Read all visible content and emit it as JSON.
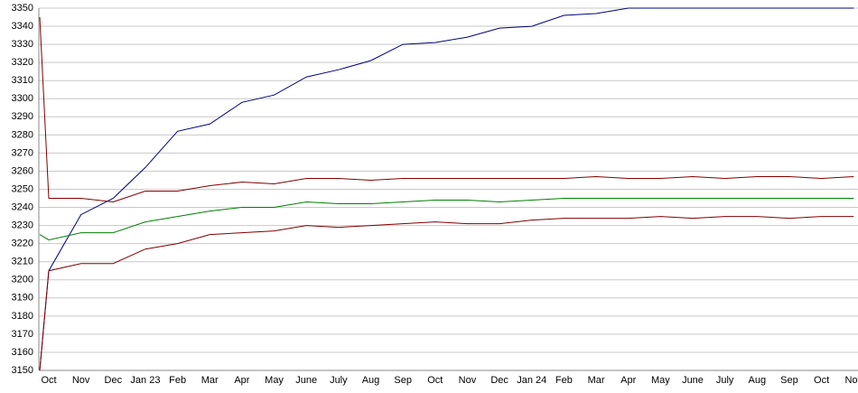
{
  "chart_data": {
    "type": "line",
    "categories": [
      null,
      "Oct",
      "Nov",
      "Dec",
      "Jan 23",
      "Feb",
      "Mar",
      "Apr",
      "May",
      "June",
      "July",
      "Aug",
      "Sep",
      "Oct",
      "Nov",
      "Dec",
      "Jan 24",
      "Feb",
      "Mar",
      "Apr",
      "May",
      "June",
      "July",
      "Aug",
      "Sep",
      "Oct",
      "Nov"
    ],
    "series": [
      {
        "color": "#000080",
        "values": [
          3150,
          3205,
          3236,
          3245,
          3262,
          3282,
          3286,
          3298,
          3302,
          3312,
          3316,
          3321,
          3330,
          3331,
          3334,
          3339,
          3340,
          3346,
          3347,
          3350,
          3350,
          3350,
          3350,
          3350,
          3350,
          3350,
          3350
        ]
      },
      {
        "color": "#800000",
        "values": [
          3345,
          3245,
          3245,
          3243,
          3249,
          3249,
          3252,
          3254,
          3253,
          3256,
          3256,
          3255,
          3256,
          3256,
          3256,
          3256,
          3256,
          3256,
          3257,
          3256,
          3256,
          3257,
          3256,
          3257,
          3257,
          3256,
          3257
        ]
      },
      {
        "color": "#008000",
        "values": [
          3225,
          3222,
          3226,
          3226,
          3232,
          3235,
          3238,
          3240,
          3240,
          3243,
          3242,
          3242,
          3243,
          3244,
          3244,
          3243,
          3244,
          3245,
          3245,
          3245,
          3245,
          3245,
          3245,
          3245,
          3245,
          3245,
          3245
        ]
      },
      {
        "color": "#800000",
        "values": [
          3150,
          3205,
          3209,
          3209,
          3217,
          3220,
          3225,
          3226,
          3227,
          3230,
          3229,
          3230,
          3231,
          3232,
          3231,
          3231,
          3233,
          3234,
          3234,
          3234,
          3235,
          3234,
          3235,
          3235,
          3234,
          3235,
          3235
        ]
      }
    ],
    "ylim": [
      3150,
      3350
    ],
    "yticks": [
      3150,
      3160,
      3170,
      3180,
      3190,
      3200,
      3210,
      3220,
      3230,
      3240,
      3250,
      3260,
      3270,
      3280,
      3290,
      3300,
      3310,
      3320,
      3330,
      3340,
      3350
    ],
    "grid": true
  }
}
